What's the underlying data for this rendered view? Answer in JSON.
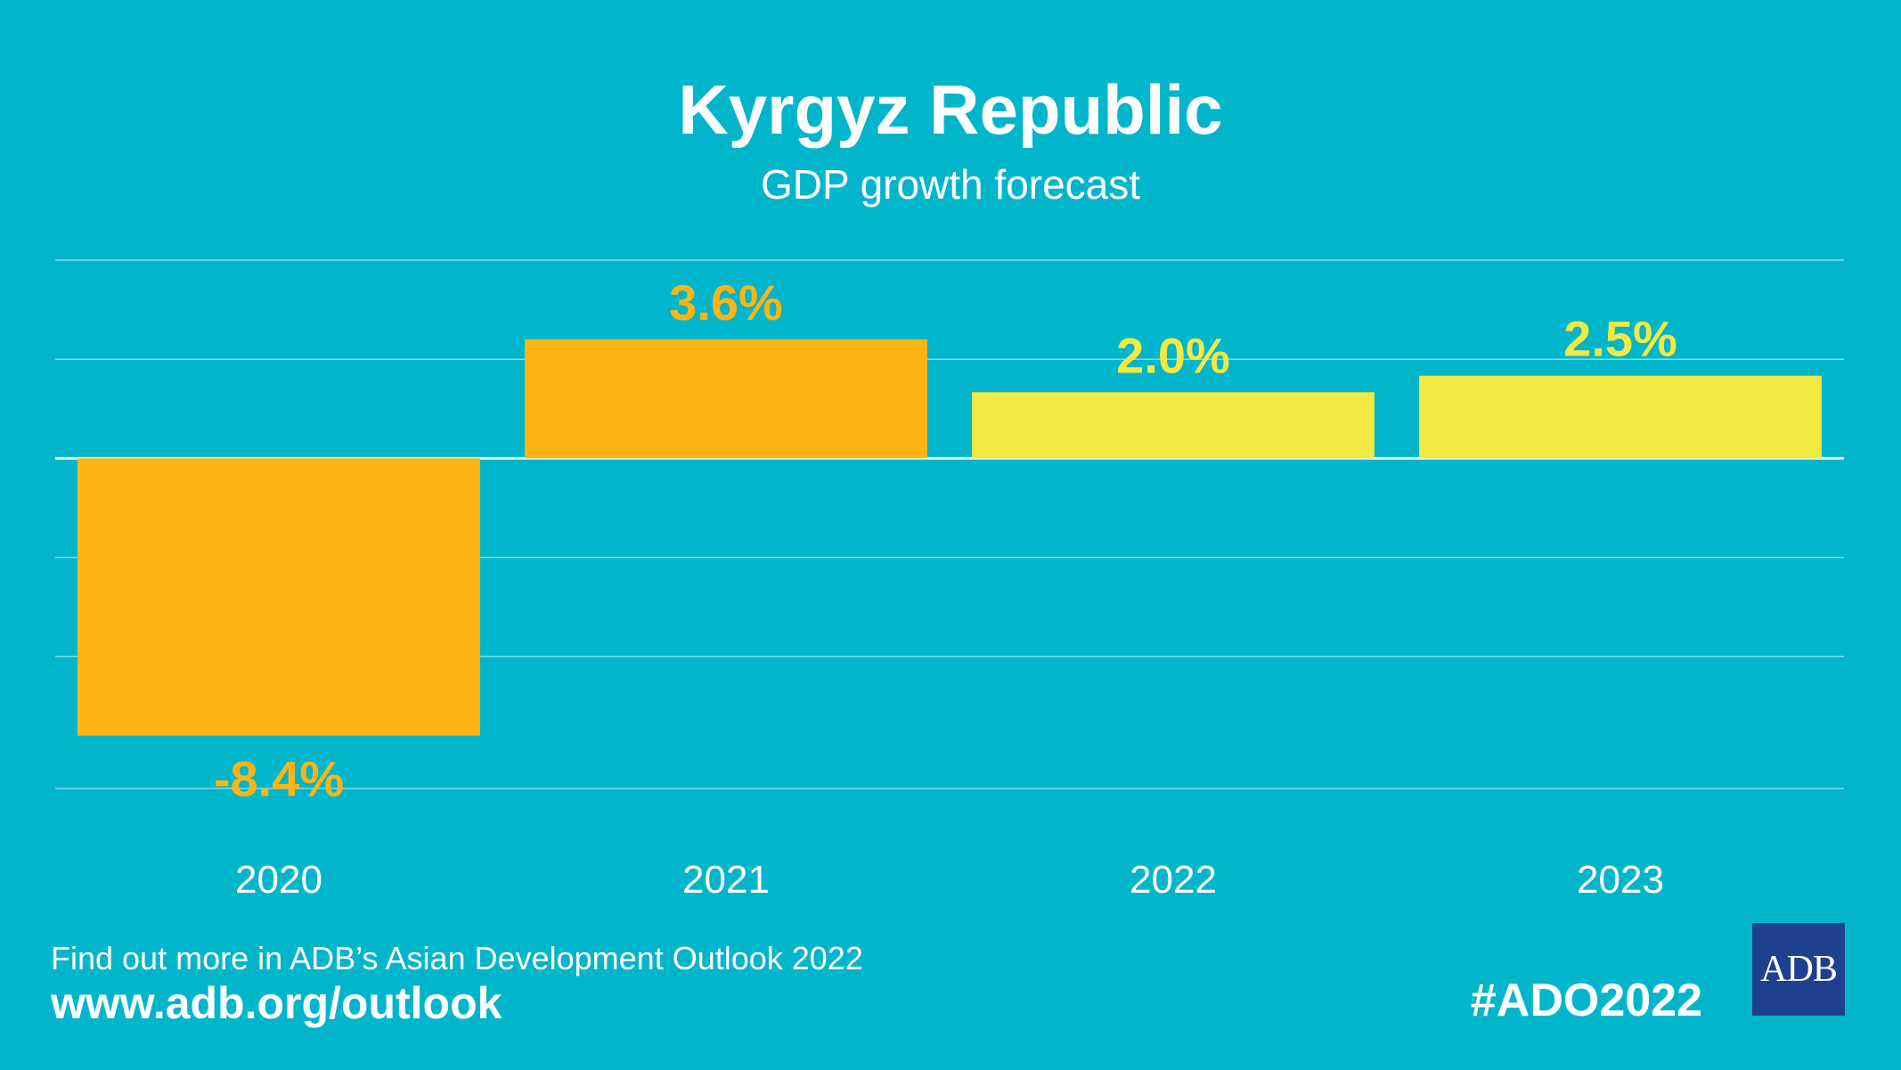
{
  "header": {
    "title": "Kyrgyz Republic",
    "subtitle": "GDP growth forecast"
  },
  "chart_data": {
    "type": "bar",
    "title": "Kyrgyz Republic",
    "subtitle": "GDP growth forecast",
    "categories": [
      "2020",
      "2021",
      "2022",
      "2023"
    ],
    "values": [
      -8.4,
      3.6,
      2.0,
      2.5
    ],
    "value_labels": [
      "-8.4%",
      "3.6%",
      "2.0%",
      "2.5%"
    ],
    "bar_kind": [
      "actual",
      "actual",
      "forecast",
      "forecast"
    ],
    "ylim": [
      -10,
      6
    ],
    "gridlines": [
      6,
      3,
      0,
      -3,
      -6,
      -10
    ],
    "grid": true,
    "xlabel": "",
    "ylabel": "",
    "colors": {
      "actual": "#fdb515",
      "forecast": "#f4e842",
      "label_actual": "#fdb515",
      "label_forecast": "#f4e842",
      "grid": "#7fdbe6",
      "zero_line": "#e8f8fa",
      "tick_text": "#ffffff"
    }
  },
  "footer": {
    "line1": "Find out more in ADB’s Asian Development Outlook 2022",
    "line2": "www.adb.org/outlook",
    "hashtag": "#ADO2022"
  },
  "logo": {
    "text": "ADB",
    "color": "#1f3f8f"
  }
}
